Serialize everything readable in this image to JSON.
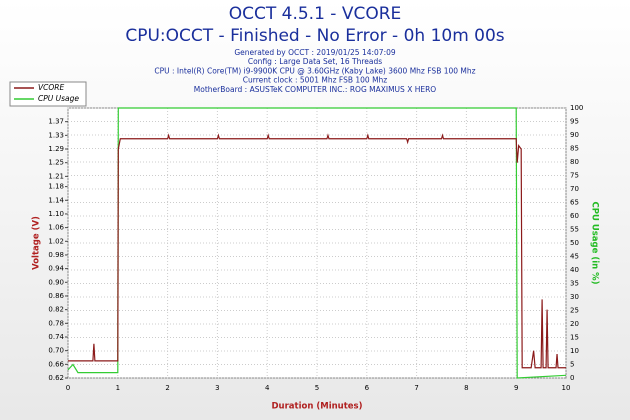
{
  "chart_data": {
    "type": "line",
    "title": "OCCT 4.5.1 - VCORE",
    "subtitle": "CPU:OCCT - Finished - No Error - 0h 10m 00s",
    "info": [
      "Generated by OCCT : 2019/01/25 14:07:09",
      "Config : Large Data Set, 16 Threads",
      "CPU : Intel(R) Core(TM) i9-9900K CPU @ 3.60GHz (Kaby Lake) 3600 Mhz FSB 100 Mhz",
      "Current clock : 5001 Mhz FSB 100 Mhz",
      "MotherBoard : ASUSTeK COMPUTER INC.: ROG MAXIMUS X HERO"
    ],
    "xlabel": "Duration (Minutes)",
    "ylabel": "Voltage (V)",
    "y2label": "CPU Usage (in %)",
    "xlim": [
      0,
      10
    ],
    "xticks": [
      0,
      1,
      2,
      3,
      4,
      5,
      6,
      7,
      8,
      9,
      10
    ],
    "ylim": [
      0.62,
      1.41
    ],
    "yticks": [
      0.62,
      0.66,
      {
        "value": 0.7,
        "label": "0.70"
      },
      0.74,
      0.78,
      0.82,
      0.86,
      {
        "value": 0.9,
        "label": "0.90"
      },
      0.94,
      0.98,
      1.02,
      1.06,
      {
        "value": 1.1,
        "label": "1.10"
      },
      1.14,
      1.18,
      1.21,
      1.25,
      1.29,
      1.33,
      1.37
    ],
    "y2lim": [
      0,
      100
    ],
    "y2ticks": [
      0,
      5,
      10,
      15,
      20,
      25,
      30,
      35,
      40,
      45,
      50,
      55,
      60,
      65,
      70,
      75,
      80,
      85,
      90,
      95,
      100
    ],
    "grid": true,
    "legend": "top-left",
    "series": [
      {
        "name": "VCORE",
        "color": "#8b1a1a",
        "x": [
          0,
          0.5,
          0.52,
          0.54,
          1.0,
          1.01,
          1.05,
          2,
          2.02,
          2.04,
          3,
          3.02,
          3.04,
          4,
          4.02,
          4.04,
          5.2,
          5.22,
          5.24,
          6,
          6.02,
          6.04,
          6.8,
          6.82,
          6.84,
          7.5,
          7.52,
          7.54,
          9.0,
          9.02,
          9.05,
          9.1,
          9.12,
          9.3,
          9.35,
          9.38,
          9.5,
          9.52,
          9.54,
          9.6,
          9.62,
          9.64,
          9.8,
          9.82,
          9.84,
          10
        ],
        "values": [
          0.67,
          0.67,
          0.72,
          0.67,
          0.67,
          1.29,
          1.32,
          1.32,
          1.33,
          1.32,
          1.32,
          1.33,
          1.32,
          1.32,
          1.33,
          1.32,
          1.32,
          1.33,
          1.32,
          1.32,
          1.33,
          1.32,
          1.32,
          1.31,
          1.32,
          1.32,
          1.33,
          1.32,
          1.32,
          1.25,
          1.3,
          1.29,
          0.65,
          0.65,
          0.7,
          0.65,
          0.65,
          0.85,
          0.65,
          0.65,
          0.82,
          0.65,
          0.65,
          0.69,
          0.65,
          0.65
        ]
      },
      {
        "name": "CPU Usage",
        "color": "#33cc33",
        "axis": "y2",
        "x": [
          0,
          0.1,
          0.2,
          0.5,
          1.0,
          1.01,
          9.0,
          9.02,
          10
        ],
        "values": [
          3,
          5,
          2,
          2,
          2,
          100,
          100,
          0,
          1
        ]
      }
    ]
  }
}
